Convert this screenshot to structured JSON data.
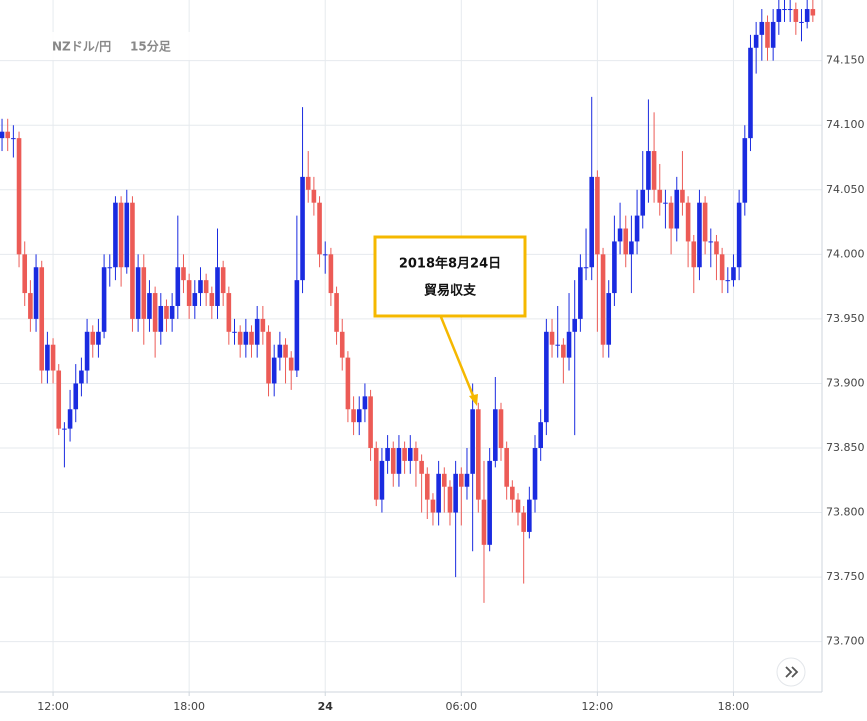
{
  "chart_data": {
    "type": "candlestick",
    "title": "NZドル/円",
    "subtitle": "15分足",
    "annotation": [
      "2018年8月24日",
      "貿易収支"
    ],
    "up_color": "#1a2be0",
    "down_color": "#ec5b56",
    "grid": true,
    "ylim": [
      73.661,
      74.197
    ],
    "yticks": [
      {
        "value": 73.7,
        "label": "73.700"
      },
      {
        "value": 73.75,
        "label": "73.750"
      },
      {
        "value": 73.8,
        "label": "73.800"
      },
      {
        "value": 73.85,
        "label": "73.850"
      },
      {
        "value": 73.9,
        "label": "73.900"
      },
      {
        "value": 73.95,
        "label": "73.950"
      },
      {
        "value": 74.0,
        "label": "74.000"
      },
      {
        "value": 74.05,
        "label": "74.050"
      },
      {
        "value": 74.1,
        "label": "74.100"
      },
      {
        "value": 74.15,
        "label": "74.150"
      }
    ],
    "categories": [
      null,
      null,
      null,
      null,
      null,
      null,
      null,
      null,
      null,
      "12:00",
      null,
      null,
      null,
      null,
      null,
      null,
      null,
      null,
      null,
      null,
      null,
      null,
      null,
      null,
      null,
      null,
      null,
      null,
      null,
      null,
      null,
      null,
      null,
      "18:00",
      null,
      null,
      null,
      null,
      null,
      null,
      null,
      null,
      null,
      null,
      null,
      null,
      null,
      null,
      null,
      null,
      null,
      null,
      null,
      null,
      null,
      null,
      null,
      "24",
      null,
      null,
      null,
      null,
      null,
      null,
      null,
      null,
      null,
      null,
      null,
      null,
      null,
      null,
      null,
      null,
      null,
      null,
      null,
      null,
      null,
      null,
      null,
      "06:00",
      null,
      null,
      null,
      null,
      null,
      null,
      null,
      null,
      null,
      null,
      null,
      null,
      null,
      null,
      null,
      null,
      null,
      null,
      null,
      null,
      null,
      null,
      null,
      "12:00",
      null,
      null,
      null,
      null,
      null,
      null,
      null,
      null,
      null,
      null,
      null,
      null,
      null,
      null,
      null,
      null,
      null,
      null,
      null,
      null,
      null,
      null,
      null,
      "18:00",
      null,
      null,
      null,
      null,
      null,
      null,
      null,
      null,
      null,
      null,
      null,
      null,
      null,
      null
    ],
    "open": [
      74.09,
      74.095,
      74.09,
      74.09,
      74.0,
      73.97,
      73.95,
      73.99,
      73.91,
      73.93,
      73.91,
      73.865,
      73.865,
      73.88,
      73.9,
      73.91,
      73.94,
      73.93,
      73.94,
      73.99,
      73.99,
      74.04,
      73.99,
      74.04,
      73.95,
      73.99,
      73.95,
      73.97,
      73.94,
      73.96,
      73.95,
      73.96,
      73.99,
      73.98,
      73.96,
      73.97,
      73.98,
      73.97,
      73.96,
      73.99,
      73.97,
      73.94,
      73.94,
      73.93,
      73.94,
      73.93,
      73.95,
      73.94,
      73.9,
      73.92,
      73.93,
      73.92,
      73.91,
      73.98,
      74.06,
      74.05,
      74.04,
      74.0,
      74.0,
      73.97,
      73.94,
      73.92,
      73.88,
      73.87,
      73.88,
      73.89,
      73.85,
      73.81,
      73.84,
      73.85,
      73.83,
      73.85,
      73.84,
      73.85,
      73.84,
      73.83,
      73.81,
      73.8,
      73.83,
      73.82,
      73.8,
      73.83,
      73.82,
      73.83,
      73.88,
      73.81,
      73.775,
      73.84,
      73.88,
      73.85,
      73.82,
      73.81,
      73.8,
      73.785,
      73.81,
      73.85,
      73.87,
      73.94,
      73.93,
      73.93,
      73.92,
      73.94,
      73.95,
      73.99,
      73.99,
      74.06,
      74.0,
      73.93,
      73.97,
      74.01,
      74.02,
      74.0,
      74.01,
      74.03,
      74.05,
      74.08,
      74.05,
      74.04,
      74.04,
      74.02,
      74.05,
      74.04,
      74.01,
      73.99,
      74.04,
      74.01,
      74.01,
      74.0,
      73.98,
      73.98,
      73.99,
      74.04,
      74.09,
      74.16,
      74.17,
      74.18,
      74.16,
      74.18,
      74.19,
      74.19,
      74.19,
      74.18,
      74.18,
      74.19
    ],
    "high": [
      74.105,
      74.105,
      74.1,
      74.095,
      74.01,
      73.98,
      74.0,
      73.995,
      73.94,
      73.935,
      73.915,
      73.87,
      73.895,
      73.915,
      73.92,
      73.95,
      73.945,
      73.95,
      74.0,
      74.0,
      74.045,
      74.045,
      74.05,
      74.045,
      74.0,
      74.0,
      73.98,
      73.975,
      73.97,
      73.965,
      73.97,
      74.03,
      74.0,
      73.985,
      73.98,
      73.99,
      73.985,
      73.975,
      74.02,
      73.995,
      73.975,
      73.95,
      73.945,
      73.95,
      73.945,
      73.96,
      73.96,
      73.945,
      73.93,
      73.94,
      73.935,
      73.925,
      74.03,
      74.114,
      74.08,
      74.06,
      74.045,
      74.01,
      74.005,
      73.975,
      73.95,
      73.925,
      73.89,
      73.89,
      73.9,
      73.895,
      73.855,
      73.85,
      73.86,
      73.855,
      73.86,
      73.855,
      73.86,
      73.855,
      73.845,
      73.835,
      73.815,
      73.84,
      73.835,
      73.825,
      73.84,
      73.835,
      73.85,
      73.9,
      73.885,
      73.84,
      73.85,
      73.905,
      73.885,
      73.855,
      73.825,
      73.815,
      73.805,
      73.82,
      73.86,
      73.88,
      73.95,
      73.95,
      73.96,
      73.935,
      73.97,
      73.98,
      74.0,
      74.02,
      74.122,
      74.065,
      74.005,
      73.98,
      74.03,
      74.04,
      74.03,
      74.03,
      74.05,
      74.08,
      74.12,
      74.11,
      74.07,
      74.05,
      74.045,
      74.06,
      74.08,
      74.045,
      74.015,
      74.05,
      74.045,
      74.02,
      74.015,
      74.005,
      73.99,
      74.0,
      74.05,
      74.1,
      74.17,
      74.18,
      74.19,
      74.185,
      74.19,
      74.197,
      74.197,
      74.197,
      74.195,
      74.19,
      74.197,
      74.197
    ],
    "low": [
      74.08,
      74.08,
      74.075,
      73.99,
      73.96,
      73.94,
      73.94,
      73.9,
      73.9,
      73.9,
      73.86,
      73.835,
      73.855,
      73.87,
      73.89,
      73.9,
      73.92,
      73.92,
      73.935,
      73.975,
      73.98,
      73.975,
      73.985,
      73.94,
      73.94,
      73.93,
      73.94,
      73.92,
      73.93,
      73.94,
      73.94,
      73.95,
      73.97,
      73.95,
      73.95,
      73.96,
      73.96,
      73.95,
      73.95,
      73.96,
      73.93,
      73.93,
      73.92,
      73.92,
      73.92,
      73.92,
      73.93,
      73.89,
      73.89,
      73.91,
      73.9,
      73.895,
      73.905,
      73.97,
      74.04,
      74.03,
      73.99,
      73.985,
      73.96,
      73.93,
      73.91,
      73.87,
      73.86,
      73.86,
      73.87,
      73.84,
      73.805,
      73.8,
      73.83,
      73.82,
      73.82,
      73.83,
      73.83,
      73.82,
      73.8,
      73.795,
      73.79,
      73.79,
      73.8,
      73.79,
      73.75,
      73.79,
      73.81,
      73.77,
      73.8,
      73.73,
      73.77,
      73.835,
      73.84,
      73.81,
      73.8,
      73.79,
      73.745,
      73.78,
      73.8,
      73.84,
      73.86,
      73.92,
      73.92,
      73.9,
      73.91,
      73.86,
      73.94,
      73.98,
      73.98,
      73.94,
      73.92,
      73.92,
      73.96,
      74.0,
      73.99,
      73.97,
      74.0,
      74.02,
      74.04,
      74.04,
      74.03,
      74.02,
      74.0,
      74.01,
      74.03,
      73.99,
      73.97,
      73.98,
      74.0,
      73.99,
      73.98,
      73.97,
      73.97,
      73.975,
      73.98,
      74.03,
      74.08,
      74.14,
      74.15,
      74.15,
      74.15,
      74.17,
      74.18,
      74.18,
      74.17,
      74.165,
      74.175,
      74.18
    ],
    "close": [
      74.095,
      74.09,
      74.09,
      74.0,
      73.97,
      73.95,
      73.99,
      73.91,
      73.93,
      73.91,
      73.865,
      73.865,
      73.88,
      73.9,
      73.91,
      73.94,
      73.93,
      73.94,
      73.99,
      73.99,
      74.04,
      73.99,
      74.04,
      73.95,
      73.99,
      73.95,
      73.97,
      73.94,
      73.96,
      73.95,
      73.96,
      73.99,
      73.98,
      73.96,
      73.97,
      73.98,
      73.97,
      73.96,
      73.99,
      73.97,
      73.94,
      73.94,
      73.93,
      73.94,
      73.93,
      73.95,
      73.94,
      73.9,
      73.92,
      73.93,
      73.92,
      73.91,
      73.98,
      74.06,
      74.05,
      74.04,
      74.0,
      74.0,
      73.97,
      73.94,
      73.92,
      73.88,
      73.87,
      73.88,
      73.89,
      73.85,
      73.81,
      73.84,
      73.85,
      73.83,
      73.85,
      73.84,
      73.85,
      73.84,
      73.83,
      73.81,
      73.8,
      73.83,
      73.82,
      73.8,
      73.83,
      73.82,
      73.83,
      73.88,
      73.81,
      73.775,
      73.84,
      73.88,
      73.85,
      73.82,
      73.81,
      73.8,
      73.785,
      73.81,
      73.85,
      73.87,
      73.94,
      73.93,
      73.93,
      73.92,
      73.94,
      73.95,
      73.99,
      73.99,
      74.06,
      74.0,
      73.93,
      73.97,
      74.01,
      74.02,
      74.0,
      74.01,
      74.03,
      74.05,
      74.08,
      74.05,
      74.04,
      74.04,
      74.02,
      74.05,
      74.04,
      74.01,
      73.99,
      74.04,
      74.01,
      74.01,
      74.0,
      73.98,
      73.98,
      73.99,
      74.04,
      74.09,
      74.16,
      74.17,
      74.18,
      74.16,
      74.18,
      74.19,
      74.19,
      74.19,
      74.18,
      74.18,
      74.19,
      74.185
    ]
  }
}
